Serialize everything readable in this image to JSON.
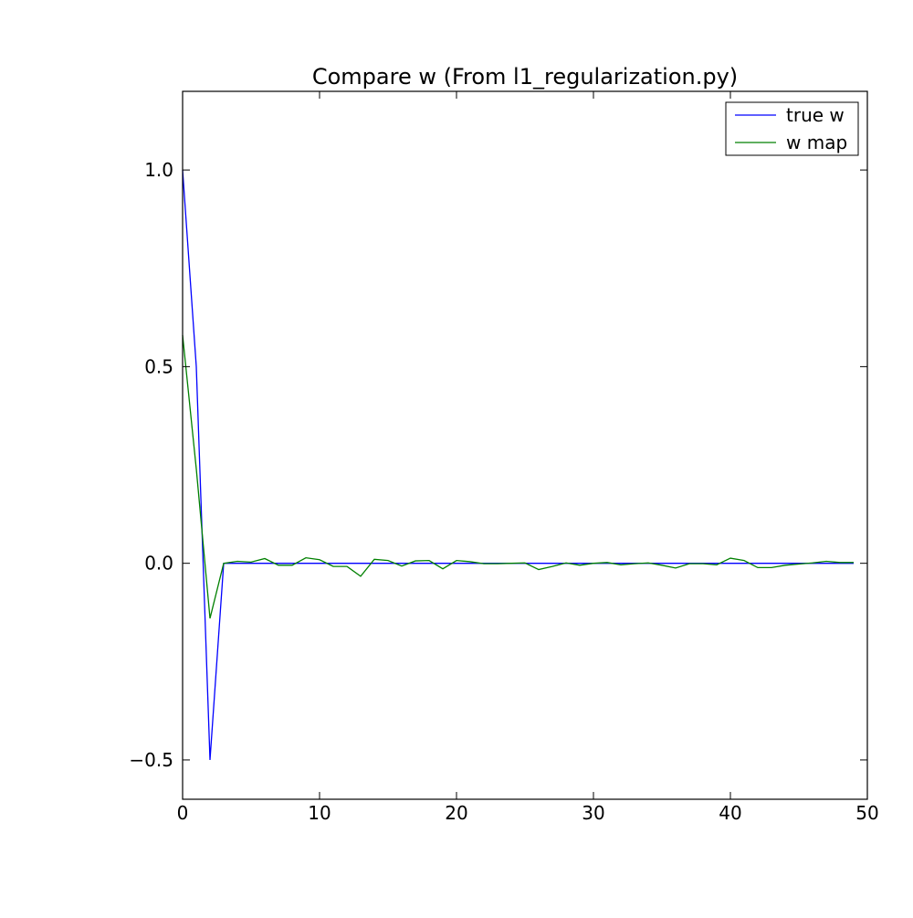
{
  "chart_data": {
    "type": "line",
    "title": "Compare w (From l1_regularization.py)",
    "xlabel": "",
    "ylabel": "",
    "xlim": [
      0,
      50
    ],
    "ylim": [
      -0.6,
      1.2
    ],
    "xticks": [
      0,
      10,
      20,
      30,
      40,
      50
    ],
    "xtick_labels": [
      "0",
      "10",
      "20",
      "30",
      "40",
      "50"
    ],
    "yticks": [
      -0.5,
      0.0,
      0.5,
      1.0
    ],
    "ytick_labels": [
      "−0.5",
      "0.0",
      "0.5",
      "1.0"
    ],
    "grid": false,
    "legend_position": "top-right",
    "x": [
      0,
      1,
      2,
      3,
      4,
      5,
      6,
      7,
      8,
      9,
      10,
      11,
      12,
      13,
      14,
      15,
      16,
      17,
      18,
      19,
      20,
      21,
      22,
      23,
      24,
      25,
      26,
      27,
      28,
      29,
      30,
      31,
      32,
      33,
      34,
      35,
      36,
      37,
      38,
      39,
      40,
      41,
      42,
      43,
      44,
      45,
      46,
      47,
      48,
      49
    ],
    "series": [
      {
        "name": "true w",
        "color": "#0000ff",
        "values": [
          1.0,
          0.5,
          -0.5,
          0,
          0,
          0,
          0,
          0,
          0,
          0,
          0,
          0,
          0,
          0,
          0,
          0,
          0,
          0,
          0,
          0,
          0,
          0,
          0,
          0,
          0,
          0,
          0,
          0,
          0,
          0,
          0,
          0,
          0,
          0,
          0,
          0,
          0,
          0,
          0,
          0,
          0,
          0,
          0,
          0,
          0,
          0,
          0,
          0,
          0,
          0
        ]
      },
      {
        "name": "w map",
        "color": "#008000",
        "values": [
          0.58,
          0.24,
          -0.14,
          0.0,
          0.005,
          0.003,
          0.012,
          -0.005,
          -0.005,
          0.014,
          0.009,
          -0.008,
          -0.008,
          -0.033,
          0.01,
          0.007,
          -0.007,
          0.006,
          0.007,
          -0.014,
          0.007,
          0.004,
          -0.001,
          -0.001,
          0.0,
          0.001,
          -0.016,
          -0.008,
          0.001,
          -0.005,
          0.0,
          0.002,
          -0.004,
          -0.001,
          0.001,
          -0.005,
          -0.012,
          -0.001,
          -0.001,
          -0.004,
          0.013,
          0.007,
          -0.011,
          -0.011,
          -0.005,
          -0.002,
          0.001,
          0.005,
          0.002,
          0.002
        ]
      }
    ]
  }
}
